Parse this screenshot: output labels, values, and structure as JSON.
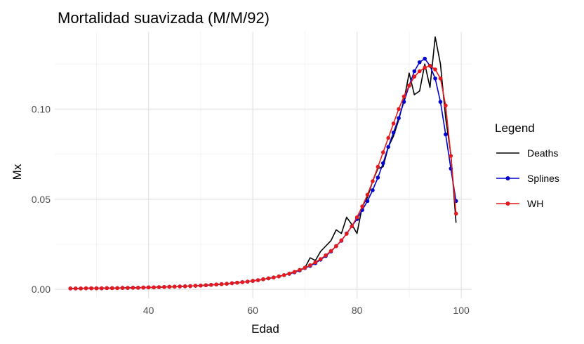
{
  "chart_data": {
    "type": "line",
    "title": "Mortalidad suavizada (M/M/92)",
    "xlabel": "Edad",
    "ylabel": "Mx",
    "xlim": [
      22,
      102
    ],
    "ylim": [
      -0.005,
      0.143
    ],
    "x_ticks": [
      40,
      60,
      80,
      100
    ],
    "x_tick_labels": [
      "40",
      "60",
      "80",
      "100"
    ],
    "y_ticks": [
      0.0,
      0.05,
      0.1
    ],
    "y_tick_labels": [
      "0.00",
      "0.05",
      "0.10"
    ],
    "grid": true,
    "legend_placement": "right",
    "legend_title": "Legend",
    "x": [
      25,
      26,
      27,
      28,
      29,
      30,
      31,
      32,
      33,
      34,
      35,
      36,
      37,
      38,
      39,
      40,
      41,
      42,
      43,
      44,
      45,
      46,
      47,
      48,
      49,
      50,
      51,
      52,
      53,
      54,
      55,
      56,
      57,
      58,
      59,
      60,
      61,
      62,
      63,
      64,
      65,
      66,
      67,
      68,
      69,
      70,
      71,
      72,
      73,
      74,
      75,
      76,
      77,
      78,
      79,
      80,
      81,
      82,
      83,
      84,
      85,
      86,
      87,
      88,
      89,
      90,
      91,
      92,
      93,
      94,
      95,
      96,
      97,
      98,
      99
    ],
    "series": [
      {
        "name": "Deaths",
        "color": "#000000",
        "markers": false,
        "values": [
          0.0005,
          0.0005,
          0.0005,
          0.0006,
          0.0006,
          0.0006,
          0.0006,
          0.0007,
          0.0007,
          0.0007,
          0.0008,
          0.0008,
          0.0009,
          0.0009,
          0.001,
          0.0011,
          0.0011,
          0.0012,
          0.0013,
          0.0014,
          0.0015,
          0.0016,
          0.0017,
          0.0018,
          0.002,
          0.0021,
          0.0023,
          0.0025,
          0.0027,
          0.0029,
          0.0031,
          0.0034,
          0.0037,
          0.004,
          0.0043,
          0.0047,
          0.0051,
          0.0056,
          0.0061,
          0.0066,
          0.0072,
          0.0079,
          0.009,
          0.0098,
          0.0108,
          0.012,
          0.0175,
          0.016,
          0.021,
          0.024,
          0.027,
          0.033,
          0.031,
          0.04,
          0.036,
          0.031,
          0.046,
          0.051,
          0.06,
          0.067,
          0.068,
          0.079,
          0.085,
          0.094,
          0.105,
          0.12,
          0.108,
          0.11,
          0.125,
          0.112,
          0.14,
          0.125,
          0.095,
          0.075,
          0.037
        ]
      },
      {
        "name": "Splines",
        "color": "#0000cd",
        "markers": true,
        "values": [
          0.0005,
          0.0005,
          0.0005,
          0.0006,
          0.0006,
          0.0006,
          0.0006,
          0.0007,
          0.0007,
          0.0007,
          0.0008,
          0.0008,
          0.0009,
          0.0009,
          0.001,
          0.0011,
          0.0011,
          0.0012,
          0.0013,
          0.0014,
          0.0015,
          0.0016,
          0.0017,
          0.0018,
          0.002,
          0.0021,
          0.0023,
          0.0025,
          0.0027,
          0.0029,
          0.0031,
          0.0034,
          0.0037,
          0.004,
          0.0043,
          0.0047,
          0.0051,
          0.0056,
          0.0061,
          0.0066,
          0.0072,
          0.0079,
          0.0086,
          0.0095,
          0.0105,
          0.0118,
          0.013,
          0.0145,
          0.0165,
          0.0185,
          0.021,
          0.024,
          0.027,
          0.031,
          0.035,
          0.039,
          0.044,
          0.049,
          0.055,
          0.062,
          0.07,
          0.079,
          0.087,
          0.095,
          0.104,
          0.113,
          0.121,
          0.126,
          0.128,
          0.124,
          0.117,
          0.104,
          0.086,
          0.067,
          0.049
        ]
      },
      {
        "name": "WH",
        "color": "#e41a1c",
        "markers": true,
        "values": [
          0.0005,
          0.0005,
          0.0005,
          0.0006,
          0.0006,
          0.0006,
          0.0006,
          0.0007,
          0.0007,
          0.0007,
          0.0008,
          0.0008,
          0.0009,
          0.0009,
          0.001,
          0.0011,
          0.0011,
          0.0012,
          0.0013,
          0.0014,
          0.0015,
          0.0016,
          0.0017,
          0.0018,
          0.002,
          0.0021,
          0.0023,
          0.0025,
          0.0027,
          0.0029,
          0.0031,
          0.0034,
          0.0037,
          0.004,
          0.0043,
          0.0047,
          0.0051,
          0.0056,
          0.0061,
          0.0066,
          0.0072,
          0.0079,
          0.0087,
          0.0097,
          0.0108,
          0.012,
          0.0134,
          0.015,
          0.0168,
          0.0189,
          0.0213,
          0.024,
          0.0272,
          0.0308,
          0.035,
          0.04,
          0.046,
          0.0525,
          0.06,
          0.068,
          0.076,
          0.084,
          0.092,
          0.1,
          0.107,
          0.113,
          0.118,
          0.121,
          0.123,
          0.124,
          0.122,
          0.117,
          0.102,
          0.074,
          0.042
        ]
      }
    ]
  }
}
